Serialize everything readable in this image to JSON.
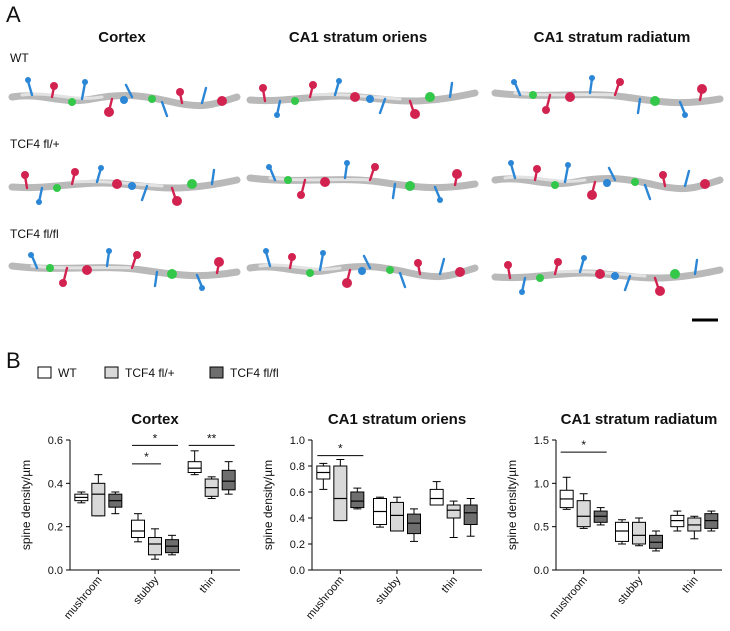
{
  "panel_a": {
    "label": "A",
    "columns": [
      "Cortex",
      "CA1 stratum oriens",
      "CA1 stratum radiatum"
    ],
    "rows": [
      "WT",
      "TCF4 fl/+",
      "TCF4 fl/fl"
    ]
  },
  "panel_b": {
    "label": "B"
  },
  "legend": {
    "items": [
      {
        "name": "WT",
        "color": "#ffffff"
      },
      {
        "name": "TCF4 fl/+",
        "color": "#d9d9d9"
      },
      {
        "name": "TCF4 fl/fl",
        "color": "#6e6e6e"
      }
    ]
  },
  "chart_data": [
    {
      "type": "box",
      "title": "Cortex",
      "y_label": "spine density/µm",
      "categories": [
        "mushroom",
        "stubby",
        "thin"
      ],
      "ylim": [
        0,
        0.6
      ],
      "yticks": [
        {
          "value": 0,
          "label": "0.0"
        },
        0.2,
        0.4,
        0.6
      ],
      "series": [
        {
          "color": "#ffffff",
          "boxes": [
            {
              "min": 0.31,
              "q1": 0.32,
              "median": 0.335,
              "q3": 0.35,
              "max": 0.36
            },
            {
              "min": 0.13,
              "q1": 0.15,
              "median": 0.18,
              "q3": 0.23,
              "max": 0.26
            },
            {
              "min": 0.44,
              "q1": 0.45,
              "median": 0.47,
              "q3": 0.5,
              "max": 0.55
            }
          ]
        },
        {
          "color": "#d9d9d9",
          "boxes": [
            {
              "min": 0.25,
              "q1": 0.25,
              "median": 0.35,
              "q3": 0.4,
              "max": 0.44
            },
            {
              "min": 0.05,
              "q1": 0.07,
              "median": 0.12,
              "q3": 0.15,
              "max": 0.19
            },
            {
              "min": 0.33,
              "q1": 0.34,
              "median": 0.38,
              "q3": 0.42,
              "max": 0.43
            }
          ]
        },
        {
          "color": "#6e6e6e",
          "boxes": [
            {
              "min": 0.26,
              "q1": 0.29,
              "median": 0.32,
              "q3": 0.35,
              "max": 0.36
            },
            {
              "min": 0.07,
              "q1": 0.08,
              "median": 0.11,
              "q3": 0.14,
              "max": 0.16
            },
            {
              "min": 0.35,
              "q1": 0.37,
              "median": 0.41,
              "q3": 0.46,
              "max": 0.5
            }
          ]
        }
      ],
      "annotations": [
        {
          "label": "*",
          "category": 1,
          "from": 0,
          "to": 2,
          "y": 0.575
        },
        {
          "label": "*",
          "category": 1,
          "from": 0,
          "to": 1,
          "y": 0.49
        },
        {
          "label": "**",
          "category": 2,
          "from": 0,
          "to": 2,
          "y": 0.575
        }
      ]
    },
    {
      "type": "box",
      "title": "CA1 stratum oriens",
      "y_label": "spine density/µm",
      "categories": [
        "mushroom",
        "stubby",
        "thin"
      ],
      "ylim": [
        0,
        1
      ],
      "yticks": [
        {
          "value": 0,
          "label": "0.0"
        },
        0.2,
        0.4,
        0.6,
        0.8,
        {
          "value": 1,
          "label": "1.0"
        }
      ],
      "series": [
        {
          "color": "#ffffff",
          "boxes": [
            {
              "min": 0.62,
              "q1": 0.7,
              "median": 0.75,
              "q3": 0.8,
              "max": 0.82
            },
            {
              "min": 0.33,
              "q1": 0.35,
              "median": 0.45,
              "q3": 0.55,
              "max": 0.56
            },
            {
              "min": 0.5,
              "q1": 0.5,
              "median": 0.55,
              "q3": 0.62,
              "max": 0.68
            }
          ]
        },
        {
          "color": "#d9d9d9",
          "boxes": [
            {
              "min": 0.38,
              "q1": 0.38,
              "median": 0.55,
              "q3": 0.8,
              "max": 0.85
            },
            {
              "min": 0.3,
              "q1": 0.3,
              "median": 0.42,
              "q3": 0.52,
              "max": 0.56
            },
            {
              "min": 0.25,
              "q1": 0.4,
              "median": 0.46,
              "q3": 0.5,
              "max": 0.53
            }
          ]
        },
        {
          "color": "#6e6e6e",
          "boxes": [
            {
              "min": 0.47,
              "q1": 0.48,
              "median": 0.53,
              "q3": 0.6,
              "max": 0.63
            },
            {
              "min": 0.22,
              "q1": 0.28,
              "median": 0.36,
              "q3": 0.43,
              "max": 0.47
            },
            {
              "min": 0.26,
              "q1": 0.35,
              "median": 0.44,
              "q3": 0.5,
              "max": 0.55
            }
          ]
        }
      ],
      "annotations": [
        {
          "label": "*",
          "category": 0,
          "from": 0,
          "to": 2,
          "y": 0.88
        }
      ]
    },
    {
      "type": "box",
      "title": "CA1 stratum radiatum",
      "y_label": "spine density/µm",
      "categories": [
        "mushroom",
        "stubby",
        "thin"
      ],
      "ylim": [
        0,
        1.5
      ],
      "yticks": [
        {
          "value": 0,
          "label": "0.0"
        },
        0.5,
        {
          "value": 1,
          "label": "1.0"
        },
        1.5
      ],
      "series": [
        {
          "color": "#ffffff",
          "boxes": [
            {
              "min": 0.7,
              "q1": 0.72,
              "median": 0.82,
              "q3": 0.92,
              "max": 1.07
            },
            {
              "min": 0.3,
              "q1": 0.33,
              "median": 0.45,
              "q3": 0.55,
              "max": 0.58
            },
            {
              "min": 0.45,
              "q1": 0.5,
              "median": 0.57,
              "q3": 0.63,
              "max": 0.68
            }
          ]
        },
        {
          "color": "#d9d9d9",
          "boxes": [
            {
              "min": 0.48,
              "q1": 0.5,
              "median": 0.62,
              "q3": 0.8,
              "max": 0.88
            },
            {
              "min": 0.28,
              "q1": 0.3,
              "median": 0.4,
              "q3": 0.55,
              "max": 0.6
            },
            {
              "min": 0.36,
              "q1": 0.45,
              "median": 0.52,
              "q3": 0.6,
              "max": 0.62
            }
          ]
        },
        {
          "color": "#6e6e6e",
          "boxes": [
            {
              "min": 0.52,
              "q1": 0.55,
              "median": 0.62,
              "q3": 0.68,
              "max": 0.72
            },
            {
              "min": 0.22,
              "q1": 0.25,
              "median": 0.32,
              "q3": 0.4,
              "max": 0.45
            },
            {
              "min": 0.45,
              "q1": 0.48,
              "median": 0.57,
              "q3": 0.65,
              "max": 0.68
            }
          ]
        }
      ],
      "annotations": [
        {
          "label": "*",
          "category": 0,
          "from": 0,
          "to": 2,
          "y": 1.36
        }
      ]
    }
  ]
}
